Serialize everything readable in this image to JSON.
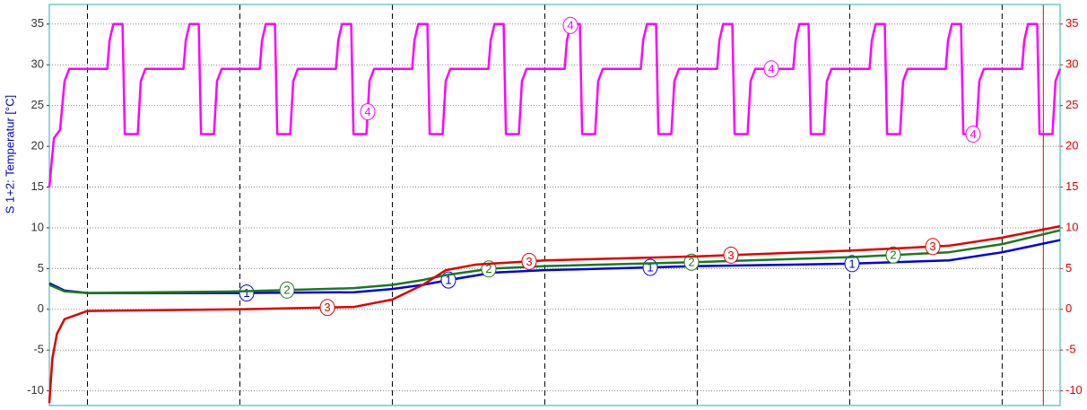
{
  "chart_data": {
    "type": "line",
    "y_label": "S 1+2: Temperatur [°C]",
    "xlim": [
      0,
      66.3
    ],
    "xticks": [
      2.5,
      12.5,
      22.5,
      32.5,
      42.5,
      52.5,
      62.5
    ],
    "cursor": 65.2,
    "ylim": [
      -11.8,
      37.4
    ],
    "yticks": [
      -10,
      -5,
      0,
      5,
      10,
      15,
      20,
      25,
      30,
      35
    ],
    "y2lim": [
      -11.8,
      37.4
    ],
    "y2ticks": [
      -10,
      -5,
      0,
      5,
      10,
      15,
      20,
      25,
      30,
      35
    ],
    "grid": true,
    "series": [
      {
        "name": "1",
        "color": "#0000e0",
        "x": [
          0,
          1,
          2.5,
          12.5,
          20,
          22.5,
          24.5,
          26.2,
          29.1,
          32.5,
          42.5,
          52.5,
          59,
          62.5,
          66.3
        ],
        "values": [
          3.2,
          2.3,
          2.0,
          2.0,
          2.1,
          2.5,
          3.0,
          3.6,
          4.5,
          4.8,
          5.3,
          5.6,
          6.0,
          7.0,
          8.5
        ]
      },
      {
        "name": "2",
        "color": "#1a7a1a",
        "x": [
          0,
          1,
          2.5,
          12.5,
          20,
          22.5,
          24.5,
          26,
          29,
          32.5,
          42.5,
          52.5,
          59,
          62.5,
          66.3
        ],
        "values": [
          3.0,
          2.2,
          2.0,
          2.2,
          2.6,
          3.0,
          3.6,
          4.2,
          5.0,
          5.3,
          5.8,
          6.4,
          7.0,
          8.0,
          9.7
        ]
      },
      {
        "name": "3",
        "color": "#e00000",
        "x": [
          0,
          0.2,
          0.5,
          1,
          2.5,
          12.5,
          20,
          22.5,
          24.5,
          26,
          28,
          32.5,
          42.5,
          52.5,
          59,
          62.5,
          66.3
        ],
        "values": [
          -11.5,
          -6,
          -3,
          -1.2,
          -0.2,
          0,
          0.3,
          1.2,
          3,
          4.8,
          5.5,
          6,
          6.5,
          7.2,
          7.8,
          8.8,
          10.2
        ]
      },
      {
        "name": "4",
        "color": "#ff00ff",
        "x": [
          0,
          0.3,
          0.7,
          1.0,
          1.3,
          3.8,
          3.95,
          4.2,
          4.8,
          4.95,
          5.8,
          6,
          6.3,
          8.8,
          8.95,
          9.2,
          9.8,
          9.95,
          10.8,
          11,
          11.3,
          13.8,
          13.95,
          14.2,
          14.8,
          14.95,
          15.8,
          16,
          16.3,
          18.8,
          18.95,
          19.2,
          19.8,
          19.95,
          20.8,
          21,
          21.3,
          23.8,
          23.95,
          24.2,
          24.8,
          24.95,
          25.8,
          26,
          26.3,
          28.8,
          28.95,
          29.2,
          29.8,
          29.95,
          30.8,
          31,
          31.3,
          33.8,
          33.95,
          34.2,
          34.8,
          34.95,
          35.8,
          36,
          36.3,
          38.8,
          38.95,
          39.2,
          39.8,
          39.95,
          40.8,
          41,
          41.3,
          43.8,
          43.95,
          44.2,
          44.8,
          44.95,
          45.8,
          46,
          46.3,
          48.8,
          48.95,
          49.2,
          49.8,
          49.95,
          50.8,
          51,
          51.3,
          53.8,
          53.95,
          54.2,
          54.8,
          54.95,
          55.8,
          56,
          56.3,
          58.8,
          58.95,
          59.2,
          59.8,
          59.95,
          60.8,
          61,
          61.3,
          63.8,
          63.95,
          64.2,
          64.8,
          64.95,
          65.8,
          66,
          66.3
        ],
        "values": [
          15,
          21,
          22,
          28,
          29.5,
          29.5,
          33,
          35,
          35,
          21.5,
          21.5,
          28,
          29.5,
          29.5,
          33,
          35,
          35,
          21.5,
          21.5,
          28,
          29.5,
          29.5,
          33,
          35,
          35,
          21.5,
          21.5,
          28,
          29.5,
          29.5,
          33,
          35,
          35,
          21.5,
          21.5,
          28,
          29.5,
          29.5,
          33,
          35,
          35,
          21.5,
          21.5,
          28,
          29.5,
          29.5,
          33,
          35,
          35,
          21.5,
          21.5,
          28,
          29.5,
          29.5,
          33,
          35,
          35,
          21.5,
          21.5,
          28,
          29.5,
          29.5,
          33,
          35,
          35,
          21.5,
          21.5,
          28,
          29.5,
          29.5,
          33,
          35,
          35,
          21.5,
          21.5,
          28,
          29.5,
          29.5,
          33,
          35,
          35,
          21.5,
          21.5,
          28,
          29.5,
          29.5,
          33,
          35,
          35,
          21.5,
          21.5,
          28,
          29.5,
          29.5,
          33,
          35,
          35,
          21.5,
          21.5,
          28,
          29.5,
          29.5,
          33,
          35,
          35,
          21.5,
          21.5,
          28,
          29.5
        ]
      }
    ]
  }
}
